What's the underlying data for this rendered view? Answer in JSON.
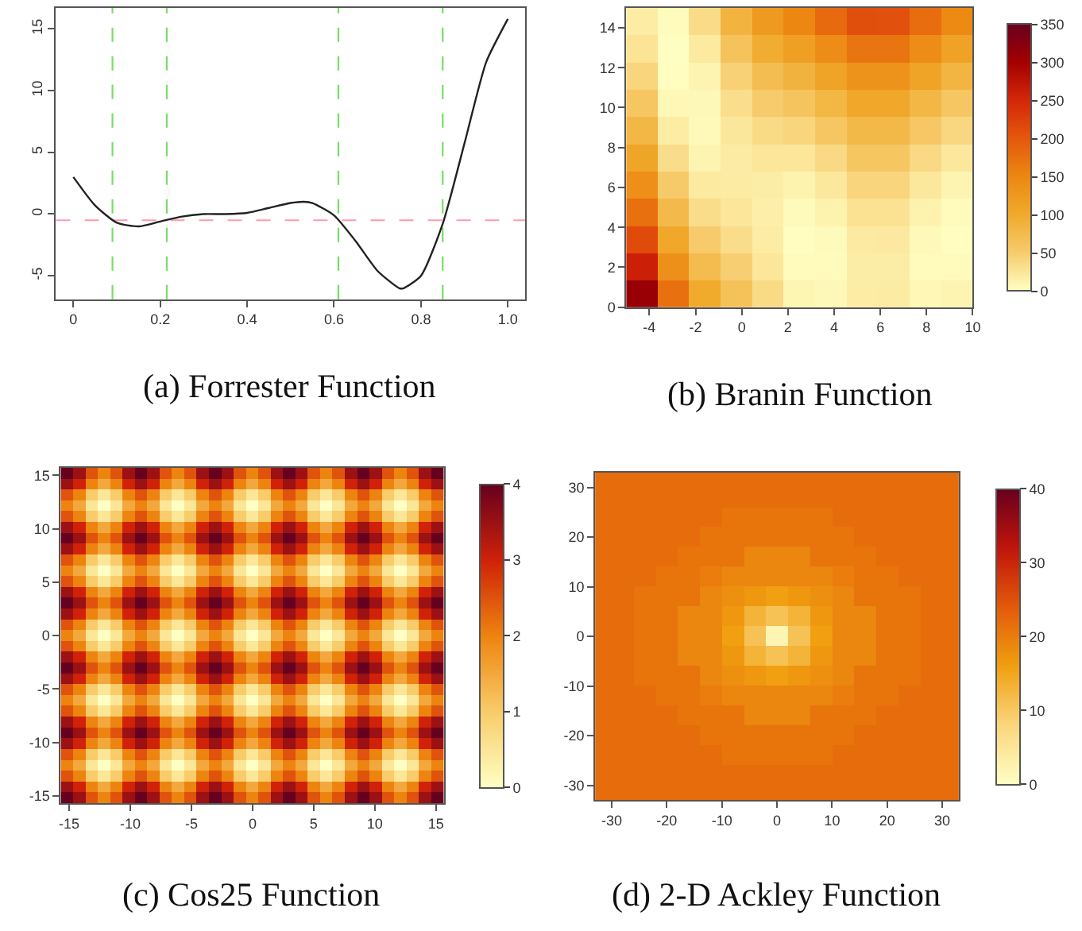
{
  "chart_data": [
    {
      "type": "line",
      "title": "(a) Forrester Function",
      "x": [
        0,
        0.05,
        0.1,
        0.15,
        0.2,
        0.25,
        0.3,
        0.35,
        0.4,
        0.45,
        0.5,
        0.53,
        0.55,
        0.6,
        0.65,
        0.7,
        0.75,
        0.76,
        0.8,
        0.85,
        0.9,
        0.95,
        1.0
      ],
      "series": [
        {
          "color": "#222222",
          "values": [
            3.0,
            0.7,
            -0.7,
            -1.0,
            -0.6,
            -0.2,
            0.0,
            0.0,
            0.1,
            0.5,
            0.9,
            1.0,
            0.9,
            -0.1,
            -2.2,
            -4.6,
            -6.0,
            -6.0,
            -5.0,
            -0.8,
            5.7,
            12.3,
            15.8
          ]
        }
      ],
      "xlim": [
        -0.04,
        1.04
      ],
      "xticks": [
        0,
        {
          "value": 0.2,
          "label": "0.2"
        },
        {
          "value": 0.4,
          "label": "0.4"
        },
        {
          "value": 0.6,
          "label": "0.6"
        },
        {
          "value": 0.8,
          "label": "0.8"
        },
        {
          "value": 1,
          "label": "1.0"
        }
      ],
      "ylim": [
        -6.9,
        16.7
      ],
      "yticks": [
        -5,
        0,
        5,
        10,
        15
      ],
      "ref_lines": [
        {
          "axis": "y",
          "value": -0.5,
          "color": "#ff9aac",
          "line_style": "dashed"
        },
        {
          "axis": "x",
          "value": 0.09,
          "color": "#77dd66",
          "line_style": "dashed"
        },
        {
          "axis": "x",
          "value": 0.215,
          "color": "#77dd66",
          "line_style": "dashed"
        },
        {
          "axis": "x",
          "value": 0.61,
          "color": "#77dd66",
          "line_style": "dashed"
        },
        {
          "axis": "x",
          "value": 0.85,
          "color": "#77dd66",
          "line_style": "dashed"
        }
      ]
    },
    {
      "type": "heatmap",
      "title": "(b) Branin Function",
      "x": [
        -4.32,
        -2.95,
        -1.59,
        -0.23,
        1.14,
        2.5,
        3.86,
        5.23,
        6.59,
        7.95,
        9.32
      ],
      "y": [
        14.32,
        12.95,
        11.59,
        10.23,
        8.86,
        7.5,
        6.14,
        4.77,
        3.41,
        2.05,
        0.68
      ],
      "cells": [
        [
          18,
          4,
          34,
          85,
          125,
          150,
          181,
          209,
          208,
          178,
          146
        ],
        [
          26,
          1,
          20,
          63,
          96,
          116,
          143,
          169,
          169,
          141,
          112
        ],
        [
          40,
          2,
          11,
          45,
          71,
          86,
          110,
          134,
          134,
          108,
          83
        ],
        [
          57,
          8,
          7,
          32,
          51,
          61,
          81,
          104,
          104,
          80,
          58
        ],
        [
          80,
          18,
          6,
          23,
          35,
          40,
          57,
          78,
          78,
          56,
          38
        ],
        [
          107,
          33,
          11,
          19,
          24,
          24,
          37,
          57,
          57,
          37,
          22
        ],
        [
          138,
          52,
          20,
          19,
          17,
          12,
          22,
          40,
          40,
          22,
          11
        ],
        [
          174,
          76,
          33,
          24,
          15,
          5,
          12,
          28,
          28,
          12,
          4
        ],
        [
          214,
          104,
          51,
          33,
          18,
          2,
          5,
          20,
          21,
          6,
          2
        ],
        [
          259,
          137,
          73,
          47,
          24,
          4,
          4,
          17,
          17,
          4,
          4
        ],
        [
          308,
          174,
          100,
          65,
          36,
          10,
          7,
          18,
          19,
          8,
          11
        ]
      ],
      "xlim": [
        -5,
        10
      ],
      "xticks": [
        -4,
        -2,
        0,
        2,
        4,
        6,
        8,
        10
      ],
      "ylim": [
        0,
        15
      ],
      "yticks": [
        0,
        2,
        4,
        6,
        8,
        10,
        12,
        14
      ],
      "clim": [
        0,
        350
      ],
      "cticks": [
        0,
        50,
        100,
        150,
        200,
        250,
        300,
        350
      ],
      "colors": [
        "#ffffc4",
        "#f7cb6c",
        "#f0aa2c",
        "#ec8712",
        "#e4580c",
        "#d4260a",
        "#a30000",
        "#67001f"
      ]
    },
    {
      "type": "heatmap",
      "title": "(c) Cos25 Function",
      "x": [
        -15.19,
        -14.18,
        -13.17,
        -12.15,
        -11.14,
        -10.13,
        -9.12,
        -8.1,
        -7.09,
        -6.08,
        -5.06,
        -4.05,
        -3.04,
        -2.03,
        -1.01,
        0,
        1.01,
        2.03,
        3.04,
        4.05,
        5.06,
        6.08,
        7.09,
        8.1,
        9.12,
        10.13,
        11.14,
        12.15,
        13.17,
        14.18,
        15.19
      ],
      "y": [
        15.19,
        14.18,
        13.17,
        12.15,
        11.14,
        10.13,
        9.12,
        8.1,
        7.09,
        6.08,
        5.06,
        4.05,
        3.04,
        2.03,
        1.01,
        0,
        -1.01,
        -2.03,
        -3.04,
        -4.05,
        -5.06,
        -6.08,
        -7.09,
        -8.1,
        -9.12,
        -10.13,
        -11.14,
        -12.15,
        -13.17,
        -14.18,
        -15.19
      ],
      "cells": [
        [
          4,
          3.5,
          2.5,
          2,
          2.5,
          3.5,
          4,
          3.5,
          2.5,
          2,
          2.5,
          3.5,
          4,
          3.5,
          2.5,
          2,
          2.5,
          3.5,
          4,
          3.5,
          2.5,
          2,
          2.5,
          3.5,
          4,
          3.5,
          2.5,
          2,
          2.5,
          3.5,
          4
        ],
        [
          3.5,
          3,
          2,
          1.5,
          2,
          3,
          3.5,
          3,
          2,
          1.5,
          2,
          3,
          3.5,
          3,
          2,
          1.5,
          2,
          3,
          3.5,
          3,
          2,
          1.5,
          2,
          3,
          3.5,
          3,
          2,
          1.5,
          2,
          3,
          3.5
        ],
        [
          2.5,
          2,
          1,
          0.5,
          1,
          2,
          2.5,
          2,
          1,
          0.5,
          1,
          2,
          2.5,
          2,
          1,
          0.5,
          1,
          2,
          2.5,
          2,
          1,
          0.5,
          1,
          2,
          2.5,
          2,
          1,
          0.5,
          1,
          2,
          2.5
        ],
        [
          2,
          1.5,
          0.5,
          0,
          0.5,
          1.5,
          2,
          1.5,
          0.5,
          0,
          0.5,
          1.5,
          2,
          1.5,
          0.5,
          0,
          0.5,
          1.5,
          2,
          1.5,
          0.5,
          0,
          0.5,
          1.5,
          2,
          1.5,
          0.5,
          0,
          0.5,
          1.5,
          2
        ],
        [
          2.5,
          2,
          1,
          0.5,
          1,
          2,
          2.5,
          2,
          1,
          0.5,
          1,
          2,
          2.5,
          2,
          1,
          0.5,
          1,
          2,
          2.5,
          2,
          1,
          0.5,
          1,
          2,
          2.5,
          2,
          1,
          0.5,
          1,
          2,
          2.5
        ],
        [
          3.5,
          3,
          2,
          1.5,
          2,
          3,
          3.5,
          3,
          2,
          1.5,
          2,
          3,
          3.5,
          3,
          2,
          1.5,
          2,
          3,
          3.5,
          3,
          2,
          1.5,
          2,
          3,
          3.5,
          3,
          2,
          1.5,
          2,
          3,
          3.5
        ],
        [
          4,
          3.5,
          2.5,
          2,
          2.5,
          3.5,
          4,
          3.5,
          2.5,
          2,
          2.5,
          3.5,
          4,
          3.5,
          2.5,
          2,
          2.5,
          3.5,
          4,
          3.5,
          2.5,
          2,
          2.5,
          3.5,
          4,
          3.5,
          2.5,
          2,
          2.5,
          3.5,
          4
        ],
        [
          3.5,
          3,
          2,
          1.5,
          2,
          3,
          3.5,
          3,
          2,
          1.5,
          2,
          3,
          3.5,
          3,
          2,
          1.5,
          2,
          3,
          3.5,
          3,
          2,
          1.5,
          2,
          3,
          3.5,
          3,
          2,
          1.5,
          2,
          3,
          3.5
        ],
        [
          2.5,
          2,
          1,
          0.5,
          1,
          2,
          2.5,
          2,
          1,
          0.5,
          1,
          2,
          2.5,
          2,
          1,
          0.5,
          1,
          2,
          2.5,
          2,
          1,
          0.5,
          1,
          2,
          2.5,
          2,
          1,
          0.5,
          1,
          2,
          2.5
        ],
        [
          2,
          1.5,
          0.5,
          0,
          0.5,
          1.5,
          2,
          1.5,
          0.5,
          0,
          0.5,
          1.5,
          2,
          1.5,
          0.5,
          0,
          0.5,
          1.5,
          2,
          1.5,
          0.5,
          0,
          0.5,
          1.5,
          2,
          1.5,
          0.5,
          0,
          0.5,
          1.5,
          2
        ],
        [
          2.5,
          2,
          1,
          0.5,
          1,
          2,
          2.5,
          2,
          1,
          0.5,
          1,
          2,
          2.5,
          2,
          1,
          0.5,
          1,
          2,
          2.5,
          2,
          1,
          0.5,
          1,
          2,
          2.5,
          2,
          1,
          0.5,
          1,
          2,
          2.5
        ],
        [
          3.5,
          3,
          2,
          1.5,
          2,
          3,
          3.5,
          3,
          2,
          1.5,
          2,
          3,
          3.5,
          3,
          2,
          1.5,
          2,
          3,
          3.5,
          3,
          2,
          1.5,
          2,
          3,
          3.5,
          3,
          2,
          1.5,
          2,
          3,
          3.5
        ],
        [
          4,
          3.5,
          2.5,
          2,
          2.5,
          3.5,
          4,
          3.5,
          2.5,
          2,
          2.5,
          3.5,
          4,
          3.5,
          2.5,
          2,
          2.5,
          3.5,
          4,
          3.5,
          2.5,
          2,
          2.5,
          3.5,
          4,
          3.5,
          2.5,
          2,
          2.5,
          3.5,
          4
        ],
        [
          3.5,
          3,
          2,
          1.5,
          2,
          3,
          3.5,
          3,
          2,
          1.5,
          2,
          3,
          3.5,
          3,
          2,
          1.5,
          2,
          3,
          3.5,
          3,
          2,
          1.5,
          2,
          3,
          3.5,
          3,
          2,
          1.5,
          2,
          3,
          3.5
        ],
        [
          2.5,
          2,
          1,
          0.5,
          1,
          2,
          2.5,
          2,
          1,
          0.5,
          1,
          2,
          2.5,
          2,
          1,
          0.5,
          1,
          2,
          2.5,
          2,
          1,
          0.5,
          1,
          2,
          2.5,
          2,
          1,
          0.5,
          1,
          2,
          2.5
        ],
        [
          2,
          1.5,
          0.5,
          0,
          0.5,
          1.5,
          2,
          1.5,
          0.5,
          0,
          0.5,
          1.5,
          2,
          1.5,
          0.5,
          0,
          0.5,
          1.5,
          2,
          1.5,
          0.5,
          0,
          0.5,
          1.5,
          2,
          1.5,
          0.5,
          0,
          0.5,
          1.5,
          2
        ],
        [
          2.5,
          2,
          1,
          0.5,
          1,
          2,
          2.5,
          2,
          1,
          0.5,
          1,
          2,
          2.5,
          2,
          1,
          0.5,
          1,
          2,
          2.5,
          2,
          1,
          0.5,
          1,
          2,
          2.5,
          2,
          1,
          0.5,
          1,
          2,
          2.5
        ],
        [
          3.5,
          3,
          2,
          1.5,
          2,
          3,
          3.5,
          3,
          2,
          1.5,
          2,
          3,
          3.5,
          3,
          2,
          1.5,
          2,
          3,
          3.5,
          3,
          2,
          1.5,
          2,
          3,
          3.5,
          3,
          2,
          1.5,
          2,
          3,
          3.5
        ],
        [
          4,
          3.5,
          2.5,
          2,
          2.5,
          3.5,
          4,
          3.5,
          2.5,
          2,
          2.5,
          3.5,
          4,
          3.5,
          2.5,
          2,
          2.5,
          3.5,
          4,
          3.5,
          2.5,
          2,
          2.5,
          3.5,
          4,
          3.5,
          2.5,
          2,
          2.5,
          3.5,
          4
        ],
        [
          3.5,
          3,
          2,
          1.5,
          2,
          3,
          3.5,
          3,
          2,
          1.5,
          2,
          3,
          3.5,
          3,
          2,
          1.5,
          2,
          3,
          3.5,
          3,
          2,
          1.5,
          2,
          3,
          3.5,
          3,
          2,
          1.5,
          2,
          3,
          3.5
        ],
        [
          2.5,
          2,
          1,
          0.5,
          1,
          2,
          2.5,
          2,
          1,
          0.5,
          1,
          2,
          2.5,
          2,
          1,
          0.5,
          1,
          2,
          2.5,
          2,
          1,
          0.5,
          1,
          2,
          2.5,
          2,
          1,
          0.5,
          1,
          2,
          2.5
        ],
        [
          2,
          1.5,
          0.5,
          0,
          0.5,
          1.5,
          2,
          1.5,
          0.5,
          0,
          0.5,
          1.5,
          2,
          1.5,
          0.5,
          0,
          0.5,
          1.5,
          2,
          1.5,
          0.5,
          0,
          0.5,
          1.5,
          2,
          1.5,
          0.5,
          0,
          0.5,
          1.5,
          2
        ],
        [
          2.5,
          2,
          1,
          0.5,
          1,
          2,
          2.5,
          2,
          1,
          0.5,
          1,
          2,
          2.5,
          2,
          1,
          0.5,
          1,
          2,
          2.5,
          2,
          1,
          0.5,
          1,
          2,
          2.5,
          2,
          1,
          0.5,
          1,
          2,
          2.5
        ],
        [
          3.5,
          3,
          2,
          1.5,
          2,
          3,
          3.5,
          3,
          2,
          1.5,
          2,
          3,
          3.5,
          3,
          2,
          1.5,
          2,
          3,
          3.5,
          3,
          2,
          1.5,
          2,
          3,
          3.5,
          3,
          2,
          1.5,
          2,
          3,
          3.5
        ],
        [
          4,
          3.5,
          2.5,
          2,
          2.5,
          3.5,
          4,
          3.5,
          2.5,
          2,
          2.5,
          3.5,
          4,
          3.5,
          2.5,
          2,
          2.5,
          3.5,
          4,
          3.5,
          2.5,
          2,
          2.5,
          3.5,
          4,
          3.5,
          2.5,
          2,
          2.5,
          3.5,
          4
        ],
        [
          3.5,
          3,
          2,
          1.5,
          2,
          3,
          3.5,
          3,
          2,
          1.5,
          2,
          3,
          3.5,
          3,
          2,
          1.5,
          2,
          3,
          3.5,
          3,
          2,
          1.5,
          2,
          3,
          3.5,
          3,
          2,
          1.5,
          2,
          3,
          3.5
        ],
        [
          2.5,
          2,
          1,
          0.5,
          1,
          2,
          2.5,
          2,
          1,
          0.5,
          1,
          2,
          2.5,
          2,
          1,
          0.5,
          1,
          2,
          2.5,
          2,
          1,
          0.5,
          1,
          2,
          2.5,
          2,
          1,
          0.5,
          1,
          2,
          2.5
        ],
        [
          2,
          1.5,
          0.5,
          0,
          0.5,
          1.5,
          2,
          1.5,
          0.5,
          0,
          0.5,
          1.5,
          2,
          1.5,
          0.5,
          0,
          0.5,
          1.5,
          2,
          1.5,
          0.5,
          0,
          0.5,
          1.5,
          2,
          1.5,
          0.5,
          0,
          0.5,
          1.5,
          2
        ],
        [
          2.5,
          2,
          1,
          0.5,
          1,
          2,
          2.5,
          2,
          1,
          0.5,
          1,
          2,
          2.5,
          2,
          1,
          0.5,
          1,
          2,
          2.5,
          2,
          1,
          0.5,
          1,
          2,
          2.5,
          2,
          1,
          0.5,
          1,
          2,
          2.5
        ],
        [
          3.5,
          3,
          2,
          1.5,
          2,
          3,
          3.5,
          3,
          2,
          1.5,
          2,
          3,
          3.5,
          3,
          2,
          1.5,
          2,
          3,
          3.5,
          3,
          2,
          1.5,
          2,
          3,
          3.5,
          3,
          2,
          1.5,
          2,
          3,
          3.5
        ],
        [
          4,
          3.5,
          2.5,
          2,
          2.5,
          3.5,
          4,
          3.5,
          2.5,
          2,
          2.5,
          3.5,
          4,
          3.5,
          2.5,
          2,
          2.5,
          3.5,
          4,
          3.5,
          2.5,
          2,
          2.5,
          3.5,
          4,
          3.5,
          2.5,
          2,
          2.5,
          3.5,
          4
        ]
      ],
      "xlim": [
        -15.7,
        15.7
      ],
      "xticks": [
        -15,
        -10,
        -5,
        0,
        5,
        10,
        15
      ],
      "ylim": [
        -15.7,
        15.7
      ],
      "yticks": [
        -15,
        -10,
        -5,
        0,
        5,
        10,
        15
      ],
      "clim": [
        0,
        4
      ],
      "cticks": [
        0,
        1,
        2,
        3,
        4
      ],
      "colors": [
        "#ffffc4",
        "#f8cc6a",
        "#ee8410",
        "#cf2208",
        "#67001f"
      ]
    },
    {
      "type": "heatmap",
      "title": "(d) 2-D Ackley Function",
      "x": [
        -32,
        -28,
        -24,
        -20,
        -16,
        -12,
        -8,
        -4,
        0,
        4,
        8,
        12,
        16,
        20,
        24,
        28,
        32
      ],
      "y": [
        32,
        28,
        24,
        20,
        16,
        12,
        8,
        4,
        0,
        -4,
        -8,
        -12,
        -16,
        -20,
        -24,
        -28,
        -32
      ],
      "cells": [
        [
          22,
          22,
          22,
          22,
          22,
          22,
          22,
          22,
          22,
          22,
          22,
          22,
          22,
          22,
          22,
          22,
          22
        ],
        [
          22,
          22,
          22,
          22,
          22,
          22,
          22,
          22,
          22,
          22,
          22,
          22,
          22,
          22,
          22,
          22,
          22
        ],
        [
          22,
          22,
          22,
          22,
          22,
          22,
          21,
          21,
          21,
          21,
          21,
          22,
          22,
          22,
          22,
          22,
          22
        ],
        [
          22,
          22,
          22,
          22,
          22,
          21,
          21,
          21,
          21,
          21,
          21,
          21,
          22,
          22,
          22,
          22,
          22
        ],
        [
          22,
          22,
          22,
          22,
          21,
          21,
          21,
          19,
          19,
          19,
          21,
          21,
          21,
          22,
          22,
          22,
          22
        ],
        [
          22,
          22,
          22,
          21,
          21,
          20,
          19,
          19,
          19,
          19,
          19,
          20,
          21,
          21,
          22,
          22,
          22
        ],
        [
          22,
          22,
          21,
          21,
          21,
          19,
          18,
          17,
          16,
          17,
          18,
          19,
          21,
          21,
          21,
          22,
          22
        ],
        [
          22,
          22,
          21,
          21,
          19,
          19,
          17,
          13,
          11,
          13,
          17,
          19,
          19,
          21,
          21,
          22,
          22
        ],
        [
          22,
          22,
          21,
          21,
          19,
          19,
          16,
          11,
          2,
          11,
          16,
          19,
          19,
          21,
          21,
          22,
          22
        ],
        [
          22,
          22,
          21,
          21,
          19,
          19,
          17,
          13,
          11,
          13,
          17,
          19,
          19,
          21,
          21,
          22,
          22
        ],
        [
          22,
          22,
          21,
          21,
          21,
          19,
          18,
          17,
          16,
          17,
          18,
          19,
          21,
          21,
          21,
          22,
          22
        ],
        [
          22,
          22,
          22,
          21,
          21,
          20,
          19,
          19,
          19,
          19,
          19,
          20,
          21,
          21,
          22,
          22,
          22
        ],
        [
          22,
          22,
          22,
          22,
          21,
          21,
          21,
          19,
          19,
          19,
          21,
          21,
          21,
          22,
          22,
          22,
          22
        ],
        [
          22,
          22,
          22,
          22,
          22,
          21,
          21,
          21,
          21,
          21,
          21,
          21,
          22,
          22,
          22,
          22,
          22
        ],
        [
          22,
          22,
          22,
          22,
          22,
          22,
          21,
          21,
          21,
          21,
          21,
          22,
          22,
          22,
          22,
          22,
          22
        ],
        [
          22,
          22,
          22,
          22,
          22,
          22,
          22,
          22,
          22,
          22,
          22,
          22,
          22,
          22,
          22,
          22,
          22
        ],
        [
          22,
          22,
          22,
          22,
          22,
          22,
          22,
          22,
          22,
          22,
          22,
          22,
          22,
          22,
          22,
          22,
          22
        ]
      ],
      "xlim": [
        -33,
        33
      ],
      "xticks": [
        -30,
        -20,
        -10,
        0,
        10,
        20,
        30
      ],
      "ylim": [
        -33,
        33
      ],
      "yticks": [
        -30,
        -20,
        -10,
        0,
        10,
        20,
        30
      ],
      "clim": [
        0,
        40
      ],
      "cticks": [
        0,
        10,
        20,
        30,
        40
      ],
      "colors": [
        "#ffffc4",
        "#fad67e",
        "#f0a010",
        "#e35a0a",
        "#c0150a",
        "#67001f"
      ]
    }
  ]
}
